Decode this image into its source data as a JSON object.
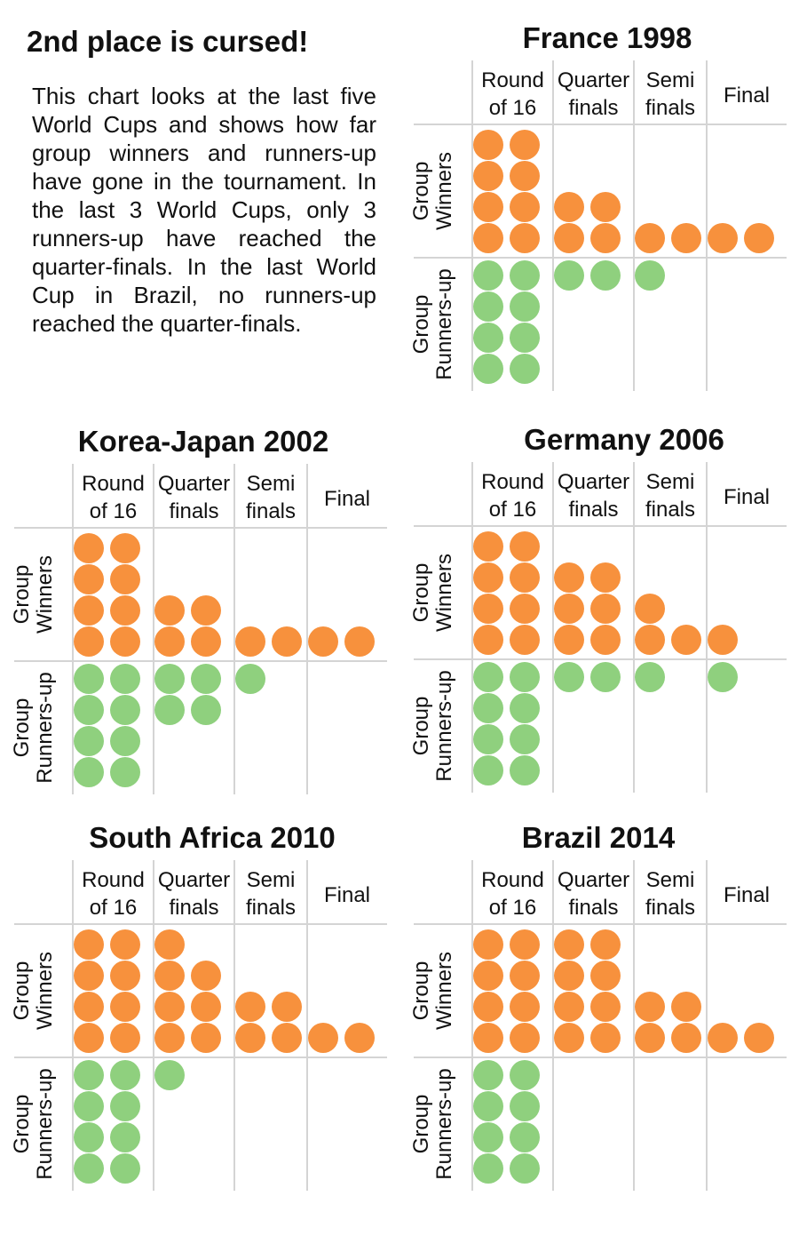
{
  "headline": "2nd place is cursed!",
  "blurb": "This chart looks at the last five World Cups and shows how far group winners and runners-up have gone in the tournament. In the last 3 World Cups, only 3 runners-up have reached the quarter-finals. In the last World Cup in Brazil, no runners-up reached the quarter-finals.",
  "colors": {
    "winners": "#f7913d",
    "runners_up": "#8fd07e",
    "gridline": "#d4d4d4"
  },
  "chart_data": [
    {
      "type": "dot-matrix",
      "title": "France 1998",
      "columns": [
        "Round|of 16",
        "Quarter|finals",
        "Semi|finals",
        "Final"
      ],
      "rows": [
        "Group|Winners",
        "Group|Runners-up"
      ],
      "values": {
        "Group Winners": [
          8,
          4,
          2,
          2
        ],
        "Group Runners-up": [
          8,
          2,
          1,
          0
        ]
      }
    },
    {
      "type": "dot-matrix",
      "title": "Korea-Japan 2002",
      "columns": [
        "Round|of 16",
        "Quarter|finals",
        "Semi|finals",
        "Final"
      ],
      "rows": [
        "Group|Winners",
        "Group|Runners-up"
      ],
      "values": {
        "Group Winners": [
          8,
          4,
          2,
          2
        ],
        "Group Runners-up": [
          8,
          4,
          1,
          0
        ]
      }
    },
    {
      "type": "dot-matrix",
      "title": "Germany 2006",
      "columns": [
        "Round|of 16",
        "Quarter|finals",
        "Semi|finals",
        "Final"
      ],
      "rows": [
        "Group|Winners",
        "Group|Runners-up"
      ],
      "values": {
        "Group Winners": [
          8,
          6,
          3,
          1
        ],
        "Group Runners-up": [
          8,
          2,
          1,
          1
        ]
      }
    },
    {
      "type": "dot-matrix",
      "title": "South Africa 2010",
      "columns": [
        "Round|of 16",
        "Quarter|finals",
        "Semi|finals",
        "Final"
      ],
      "rows": [
        "Group|Winners",
        "Group|Runners-up"
      ],
      "values": {
        "Group Winners": [
          8,
          7,
          4,
          2
        ],
        "Group Runners-up": [
          8,
          1,
          0,
          0
        ]
      }
    },
    {
      "type": "dot-matrix",
      "title": "Brazil 2014",
      "columns": [
        "Round|of 16",
        "Quarter|finals",
        "Semi|finals",
        "Final"
      ],
      "rows": [
        "Group|Winners",
        "Group|Runners-up"
      ],
      "values": {
        "Group Winners": [
          8,
          8,
          4,
          2
        ],
        "Group Runners-up": [
          8,
          0,
          0,
          0
        ]
      }
    }
  ]
}
